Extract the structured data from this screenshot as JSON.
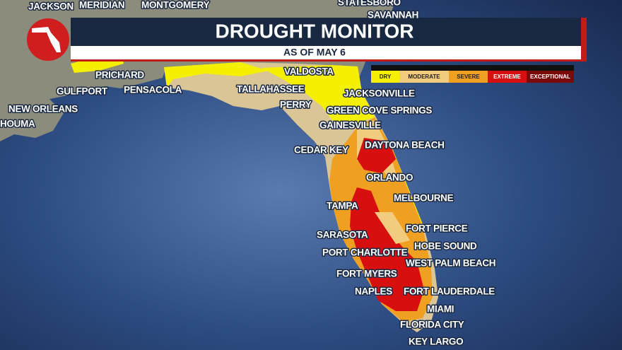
{
  "header": {
    "title": "DROUGHT MONITOR",
    "subtitle": "AS OF MAY 6"
  },
  "legend": [
    {
      "label": "DRY",
      "color": "#f4f000"
    },
    {
      "label": "MODERATE",
      "color": "#f2cc7e"
    },
    {
      "label": "SEVERE",
      "color": "#f0a020"
    },
    {
      "label": "EXTREME",
      "color": "#d80f0f"
    },
    {
      "label": "EXCEPTIONAL",
      "color": "#7a0a0a"
    }
  ],
  "cities": [
    "JACKSON",
    "MERIDIAN",
    "MONTGOMERY",
    "STATESBORO",
    "SAVANNAH",
    "PRICHARD",
    "VALDOSTA",
    "GULFPORT",
    "PENSACOLA",
    "TALLAHASSEE",
    "JACKSONVILLE",
    "NEW ORLEANS",
    "PERRY",
    "GREEN COVE SPRINGS",
    "HOUMA",
    "GAINESVILLE",
    "CEDAR KEY",
    "DAYTONA BEACH",
    "ORLANDO",
    "MELBOURNE",
    "TAMPA",
    "FORT PIERCE",
    "SARASOTA",
    "PORT CHARLOTTE",
    "HOBE SOUND",
    "WEST PALM BEACH",
    "FORT MYERS",
    "NAPLES",
    "FORT LAUDERDALE",
    "MIAMI",
    "FLORIDA CITY",
    "KEY LARGO"
  ]
}
